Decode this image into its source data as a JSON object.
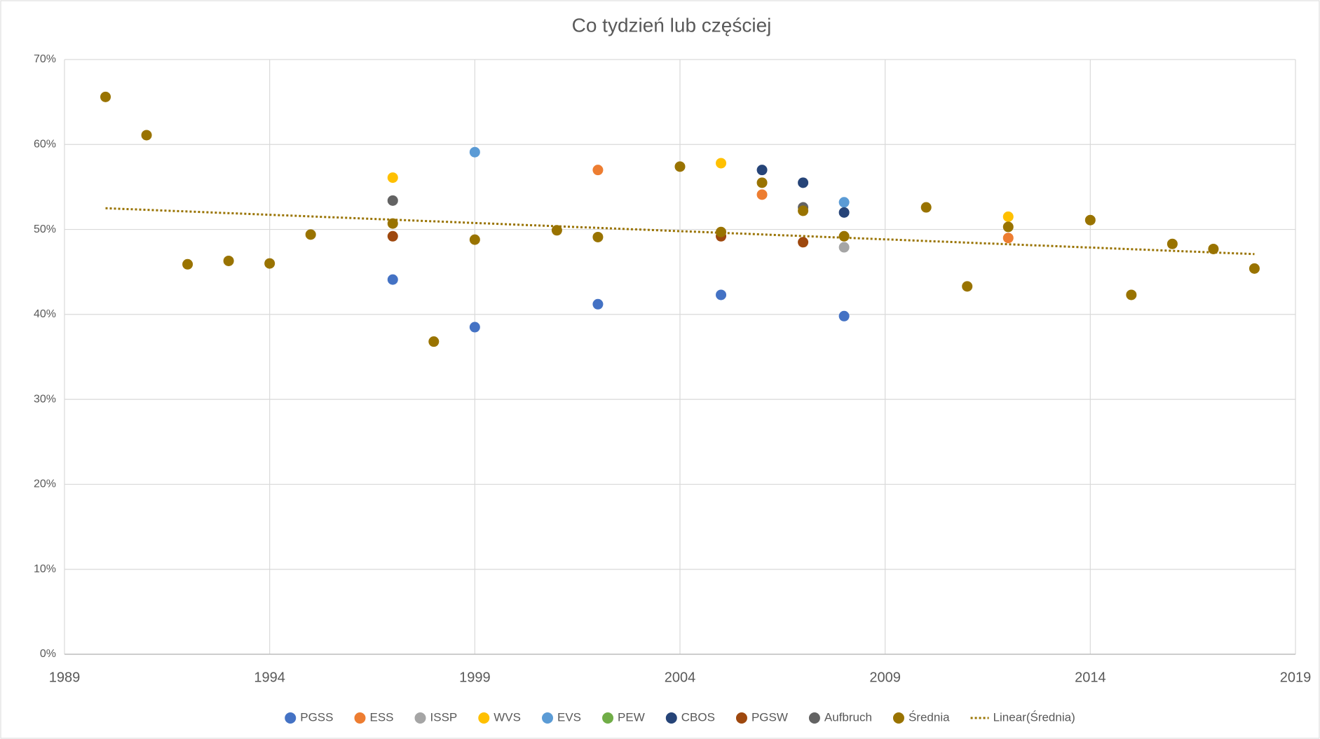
{
  "chart_data": {
    "type": "scatter",
    "title": "Co tydzień lub częściej",
    "xlim": [
      1989,
      2019
    ],
    "xticks": [
      1989,
      1994,
      1999,
      2004,
      2009,
      2014,
      2019
    ],
    "ylim": [
      0,
      70
    ],
    "yticks": [
      {
        "value": 0,
        "label": "0%"
      },
      {
        "value": 10,
        "label": "10%"
      },
      {
        "value": 20,
        "label": "20%"
      },
      {
        "value": 30,
        "label": "30%"
      },
      {
        "value": 40,
        "label": "40%"
      },
      {
        "value": 50,
        "label": "50%"
      },
      {
        "value": 60,
        "label": "60%"
      },
      {
        "value": 70,
        "label": "70%"
      }
    ],
    "grid": true,
    "legend": "bottom",
    "series": [
      {
        "name": "PGSS",
        "color": "#4472c4",
        "x": [
          1997,
          1999,
          2002,
          2005,
          2008
        ],
        "values": [
          44.1,
          38.5,
          41.2,
          42.3,
          39.8
        ]
      },
      {
        "name": "ESS",
        "color": "#ed7d31",
        "x": [
          2002,
          2006,
          2012
        ],
        "values": [
          57.0,
          54.1,
          49.0
        ]
      },
      {
        "name": "ISSP",
        "color": "#a5a5a5",
        "x": [
          2008
        ],
        "values": [
          47.9
        ]
      },
      {
        "name": "WVS",
        "color": "#ffc000",
        "x": [
          1997,
          2005,
          2012
        ],
        "values": [
          56.1,
          57.8,
          51.5
        ]
      },
      {
        "name": "EVS",
        "color": "#5b9bd5",
        "x": [
          1999,
          2008
        ],
        "values": [
          59.1,
          53.2
        ]
      },
      {
        "name": "PEW",
        "color": "#70ad47",
        "x": [],
        "values": []
      },
      {
        "name": "CBOS",
        "color": "#264478",
        "x": [
          2006,
          2007,
          2008
        ],
        "values": [
          57.0,
          55.5,
          52.0
        ]
      },
      {
        "name": "PGSW",
        "color": "#9e480e",
        "x": [
          1997,
          2005,
          2007
        ],
        "values": [
          49.2,
          49.2,
          48.5
        ]
      },
      {
        "name": "Aufbruch",
        "color": "#636363",
        "x": [
          1997,
          2007
        ],
        "values": [
          53.4,
          52.6
        ]
      },
      {
        "name": "Średnia",
        "color": "#997300",
        "x": [
          1990,
          1991,
          1992,
          1993,
          1994,
          1995,
          1997,
          1998,
          1999,
          2001,
          2002,
          2004,
          2005,
          2006,
          2007,
          2008,
          2010,
          2011,
          2012,
          2014,
          2015,
          2016,
          2017,
          2018
        ],
        "values": [
          65.6,
          61.1,
          45.9,
          46.3,
          46.0,
          49.4,
          50.7,
          36.8,
          48.8,
          49.9,
          49.1,
          57.4,
          49.7,
          55.5,
          52.2,
          49.2,
          52.6,
          43.3,
          50.3,
          51.1,
          42.3,
          48.3,
          47.7,
          45.4
        ]
      },
      {
        "name": "Linear(Średnia)",
        "color": "#997300",
        "line": "dotted",
        "x": [
          1990,
          2018
        ],
        "values": [
          52.5,
          47.1
        ]
      }
    ]
  }
}
